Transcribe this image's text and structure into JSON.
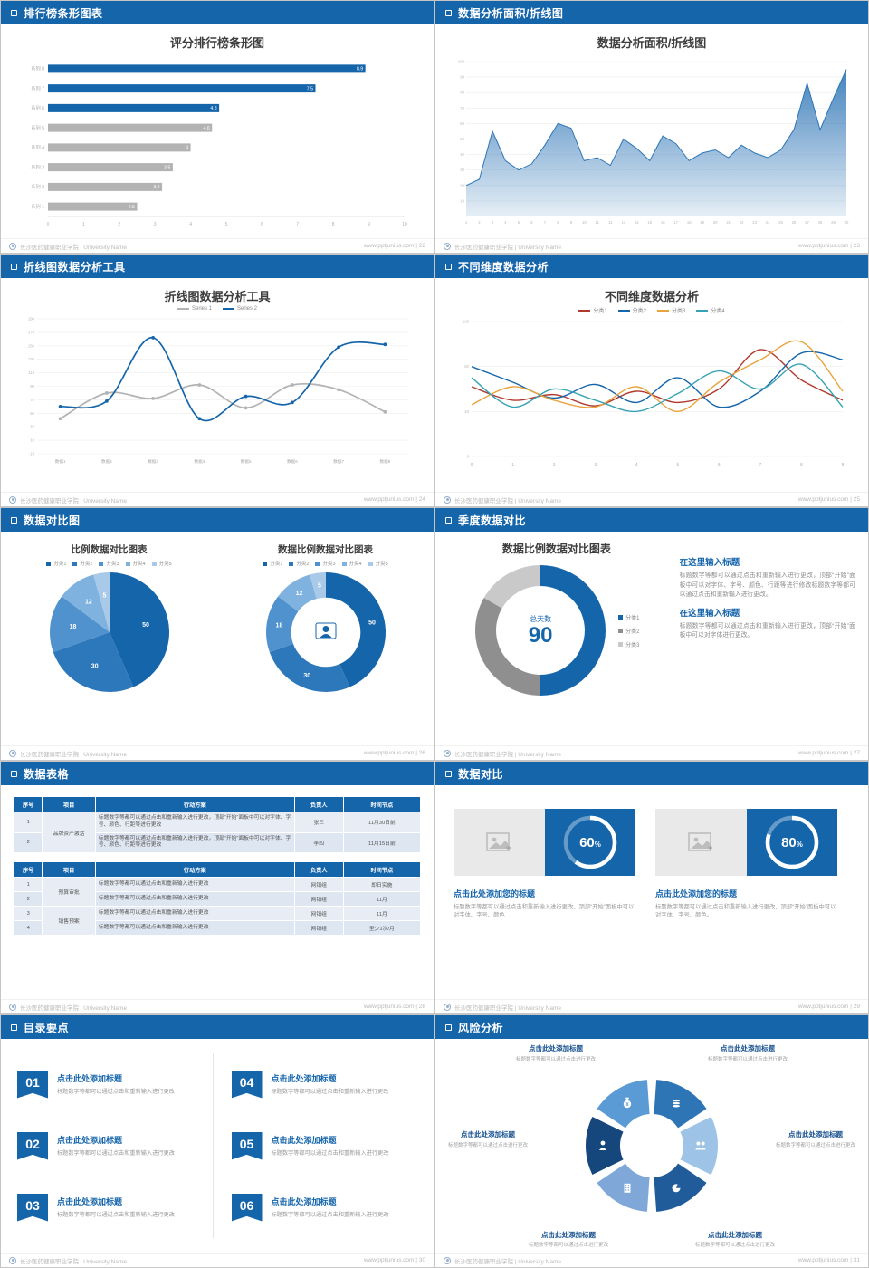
{
  "theme": {
    "primary": "#1565ab",
    "bar_gray": "#b3b3b3",
    "text_dark": "#3d3d3d",
    "text_gray": "#999999",
    "footer_text": "#b9b9b9"
  },
  "footer": {
    "school": "长沙医药健康职业学院 | University Name",
    "site": "www.pptjunius.com"
  },
  "icons": {
    "slide_header_bullet": "square-outline-icon",
    "footer_logo": "school-seal-icon",
    "card_placeholder": "photo-icon",
    "donut_center": "person-icon"
  },
  "slides": [
    {
      "header": "排行榜条形图表",
      "page": "22",
      "title": "评分排行榜条形图"
    },
    {
      "header": "数据分析面积/折线图",
      "page": "23",
      "title": "数据分析面积/折线图"
    },
    {
      "header": "折线图数据分析工具",
      "page": "24",
      "title": "折线图数据分析工具"
    },
    {
      "header": "不同维度数据分析",
      "page": "25",
      "title": "不同维度数据分析"
    },
    {
      "header": "数据对比图",
      "page": "26",
      "left_title": "比例数据对比图表",
      "right_title": "数据比例数据对比图表"
    },
    {
      "header": "季度数据对比",
      "page": "27",
      "title": "数据比例数据对比图表",
      "blocks": [
        {
          "heading": "在这里输入标题",
          "body": "标题数字等都可以通过点击和重新输入进行更改，顶部“开始”面板中可以对字体、字号、颜色、行距等进行修改标题数字等都可以通过点击和重新输入进行更改。"
        },
        {
          "heading": "在这里输入标题",
          "body": "标题数字等都可以通过点击和重新输入进行更改，顶部“开始”面板中可以对字体进行更改。"
        }
      ]
    },
    {
      "header": "数据表格",
      "page": "28",
      "table1": {
        "headers": [
          "序号",
          "项目",
          "行动方案",
          "负责人",
          "时间节点"
        ],
        "project": "品牌资产激活",
        "rows": [
          {
            "no": "1",
            "plan": "标题数字等都可以通过点击和重新输入进行更改，顶部“开始”面板中可以对字体、字号、颜色、行距等进行更改",
            "owner": "张三",
            "time": "11月30日前"
          },
          {
            "no": "2",
            "plan": "标题数字等都可以通过点击和重新输入进行更改，顶部“开始”面板中可以对字体、字号、颜色、行距等进行更改",
            "owner": "李四",
            "time": "11月15日前"
          }
        ]
      },
      "table2": {
        "headers": [
          "序号",
          "项目",
          "行动方案",
          "负责人",
          "时间节点"
        ],
        "projects": [
          "预算审批",
          "销售预案"
        ],
        "rows": [
          {
            "no": "1",
            "plan": "标题数字等都可以通过点击和重新输入进行更改",
            "owner": "网销组",
            "time": "即日实施"
          },
          {
            "no": "2",
            "plan": "标题数字等都可以通过点击和重新输入进行更改",
            "owner": "网销组",
            "time": "11月"
          },
          {
            "no": "3",
            "plan": "标题数字等都可以通过点击和重新输入进行更改",
            "owner": "网销组",
            "time": "11月"
          },
          {
            "no": "4",
            "plan": "标题数字等都可以通过点击和重新输入进行更改",
            "owner": "网销组",
            "time": "至少1次/月"
          }
        ]
      }
    },
    {
      "header": "数据对比",
      "page": "29",
      "cards": [
        {
          "title": "点击此处添加您的标题",
          "desc": "标题数字等都可以通过点击和重新输入进行更改，顶部“开始”面板中可以对字体、字号、颜色"
        },
        {
          "title": "点击此处添加您的标题",
          "desc": "标题数字等都可以通过点击和重新输入进行更改，顶部“开始”面板中可以对字体、字号、颜色。"
        }
      ]
    },
    {
      "header": "目录要点",
      "page": "30",
      "items": [
        {
          "num": "01",
          "title": "点击此处添加标题",
          "desc": "标题数字等都可以通过点击和重新输入进行更改"
        },
        {
          "num": "02",
          "title": "点击此处添加标题",
          "desc": "标题数字等都可以通过点击和重新输入进行更改"
        },
        {
          "num": "03",
          "title": "点击此处添加标题",
          "desc": "标题数字等都可以通过点击和重新输入进行更改"
        },
        {
          "num": "04",
          "title": "点击此处添加标题",
          "desc": "标题数字等都可以通过点击和重新输入进行更改"
        },
        {
          "num": "05",
          "title": "点击此处添加标题",
          "desc": "标题数字等都可以通过点击和重新输入进行更改"
        },
        {
          "num": "06",
          "title": "点击此处添加标题",
          "desc": "标题数字等都可以通过点击和重新输入进行更改"
        }
      ]
    },
    {
      "header": "风险分析",
      "page": "31",
      "labels": [
        {
          "title": "点击此处添加标题",
          "desc": "标题数字等都可以通过点击进行更改"
        },
        {
          "title": "点击此处添加标题",
          "desc": "标题数字等都可以通过点击进行更改"
        },
        {
          "title": "点击此处添加标题",
          "desc": "标题数字等都可以通过点击进行更改"
        },
        {
          "title": "点击此处添加标题",
          "desc": "标题数字等都可以通过点击进行更改"
        },
        {
          "title": "点击此处添加标题",
          "desc": "标题数字等都可以通过点击进行更改"
        },
        {
          "title": "点击此处添加标题",
          "desc": "标题数字等都可以通过点击进行更改"
        }
      ]
    }
  ],
  "chart_data": [
    {
      "id": "ranking-bar",
      "type": "bar",
      "title": "评分排行榜条形图",
      "categories": [
        "系列 8",
        "系列 7",
        "系列 6",
        "系列 5",
        "系列 4",
        "系列 3",
        "系列 2",
        "系列 1"
      ],
      "values": [
        8.9,
        7.5,
        4.8,
        4.6,
        4,
        3.5,
        3.2,
        2.5
      ],
      "colors": [
        "#1565ab",
        "#1565ab",
        "#1565ab",
        "#b3b3b3",
        "#b3b3b3",
        "#b3b3b3",
        "#b3b3b3",
        "#b3b3b3"
      ],
      "xlim": [
        0,
        10
      ],
      "orientation": "horizontal"
    },
    {
      "id": "area-line",
      "type": "area",
      "title": "数据分析面积/折线图",
      "x": [
        1,
        2,
        3,
        4,
        5,
        6,
        7,
        8,
        9,
        10,
        11,
        12,
        13,
        14,
        15,
        16,
        17,
        18,
        19,
        20,
        21,
        22,
        23,
        24,
        25,
        26,
        27,
        28,
        29,
        30
      ],
      "values": [
        20,
        24,
        55,
        36,
        30,
        34,
        46,
        60,
        57,
        36,
        38,
        33,
        50,
        44,
        36,
        52,
        47,
        36,
        41,
        43,
        38,
        46,
        41,
        38,
        43,
        56,
        86,
        56,
        76,
        95
      ],
      "ylim": [
        0,
        100
      ],
      "yticks": [
        10,
        20,
        30,
        40,
        50,
        60,
        70,
        80,
        90,
        100
      ],
      "color": "#2e75b6"
    },
    {
      "id": "two-series-line",
      "type": "line",
      "title": "折线图数据分析工具",
      "categories": [
        "数据1",
        "数据2",
        "数据3",
        "数据4",
        "数据5",
        "数据6",
        "数据7",
        "数据8"
      ],
      "series": [
        {
          "name": "Series 1",
          "color": "#b3b3b3",
          "values": [
            42,
            80,
            72,
            92,
            58,
            92,
            85,
            52
          ]
        },
        {
          "name": "Series 2",
          "color": "#1565ab",
          "values": [
            60,
            68,
            162,
            42,
            75,
            66,
            148,
            152
          ]
        }
      ],
      "ylim": [
        -10,
        190
      ],
      "yticks": [
        -10,
        10,
        30,
        50,
        70,
        90,
        110,
        130,
        150,
        170,
        190
      ],
      "markers": true,
      "pad": true,
      "stroke_width": 1.7
    },
    {
      "id": "dimension-lines",
      "type": "line",
      "title": "不同维度数据分析",
      "categories": [
        "0",
        "1",
        "2",
        "3",
        "4",
        "5",
        "6",
        "7",
        "8",
        "9"
      ],
      "series": [
        {
          "name": "分类1",
          "color": "#b03a2e",
          "values": [
            62,
            50,
            55,
            45,
            58,
            48,
            60,
            95,
            68,
            50
          ]
        },
        {
          "name": "分类2",
          "color": "#1565ab",
          "values": [
            80,
            66,
            52,
            64,
            48,
            70,
            44,
            58,
            92,
            86
          ]
        },
        {
          "name": "分类3",
          "color": "#e8a33d",
          "values": [
            46,
            62,
            50,
            44,
            62,
            40,
            66,
            86,
            102,
            58
          ]
        },
        {
          "name": "分类4",
          "color": "#36a2b5",
          "values": [
            70,
            44,
            60,
            50,
            40,
            56,
            76,
            60,
            82,
            44
          ]
        }
      ],
      "ylim": [
        0,
        120
      ],
      "yticks": [
        0,
        40,
        80,
        120
      ],
      "markers": false,
      "pad": false,
      "stroke_width": 1.4
    },
    {
      "id": "proportion-pie",
      "type": "pie",
      "title": "比例数据对比图表",
      "legend": [
        "分类1",
        "分类2",
        "分类3",
        "分类4",
        "分类5"
      ],
      "values": [
        50,
        30,
        18,
        12,
        5
      ],
      "colors": [
        "#1565ab",
        "#2d77bb",
        "#4f92cd",
        "#7fb2de",
        "#a9c9e8"
      ]
    },
    {
      "id": "proportion-donut",
      "type": "pie",
      "title": "数据比例数据对比图表",
      "legend": [
        "分类1",
        "分类2",
        "分类3",
        "分类4",
        "分类5"
      ],
      "values": [
        50,
        30,
        18,
        12,
        5
      ],
      "colors": [
        "#1565ab",
        "#2d77bb",
        "#4f92cd",
        "#7fb2de",
        "#a9c9e8"
      ],
      "inner": 0.58,
      "center_icon": "person"
    },
    {
      "id": "quarter-donut",
      "type": "pie",
      "title": "数据比例数据对比图表",
      "legend": [
        "分类1",
        "分类2",
        "分类3"
      ],
      "values": [
        45,
        30,
        15
      ],
      "colors": [
        "#1565ab",
        "#8f8f8f",
        "#c9c9c9"
      ],
      "inner": 0.68,
      "labels": false,
      "center_label": "总天数",
      "center_value": "90"
    },
    {
      "id": "progress-60",
      "type": "progress",
      "value": 60
    },
    {
      "id": "progress-80",
      "type": "progress",
      "value": 80
    },
    {
      "id": "risk-wheel",
      "type": "pie",
      "values": [
        1,
        1,
        1,
        1,
        1,
        1
      ],
      "colors": [
        "#2e75b6",
        "#9dc3e6",
        "#1f5c99",
        "#7fa8d9",
        "#15477c",
        "#5b9bd5"
      ],
      "inner": 0.48,
      "gap_deg": 8,
      "labels": false,
      "icons": [
        "coins-icon",
        "people-icon",
        "pie-icon",
        "building-icon",
        "person-icon",
        "money-bag-icon"
      ]
    }
  ]
}
